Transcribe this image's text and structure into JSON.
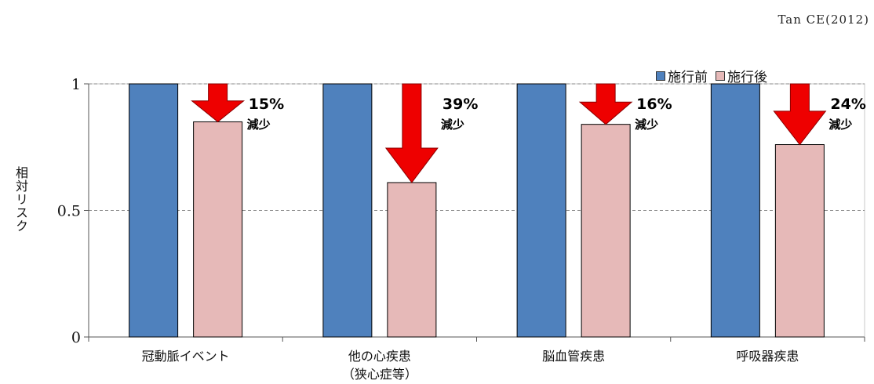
{
  "citation": "Tan CE(2012)",
  "colors": {
    "before": "#4f81bd",
    "after": "#e6b9b8",
    "arrow": "#ee0000"
  },
  "chart_data": {
    "type": "bar",
    "ylabel": "相対リスク",
    "ylim": [
      0,
      1
    ],
    "yticks": [
      "0",
      "0.5",
      "1"
    ],
    "gridlines": "dashed at 0.5 and 1",
    "legend_position": "top-right",
    "categories": [
      {
        "label": "冠動脈イベント",
        "sublabel": ""
      },
      {
        "label": "他の心疾患",
        "sublabel": "（狭心症等）"
      },
      {
        "label": "脳血管疾患",
        "sublabel": ""
      },
      {
        "label": "呼吸器疾患",
        "sublabel": ""
      }
    ],
    "series": [
      {
        "name": "施行前",
        "values": [
          1,
          1,
          1,
          1
        ]
      },
      {
        "name": "施行後",
        "values": [
          0.85,
          0.61,
          0.84,
          0.76
        ]
      }
    ],
    "annotations": [
      {
        "percent": "15%",
        "text": "減少"
      },
      {
        "percent": "39%",
        "text": "減少"
      },
      {
        "percent": "16%",
        "text": "減少"
      },
      {
        "percent": "24%",
        "text": "減少"
      }
    ]
  }
}
